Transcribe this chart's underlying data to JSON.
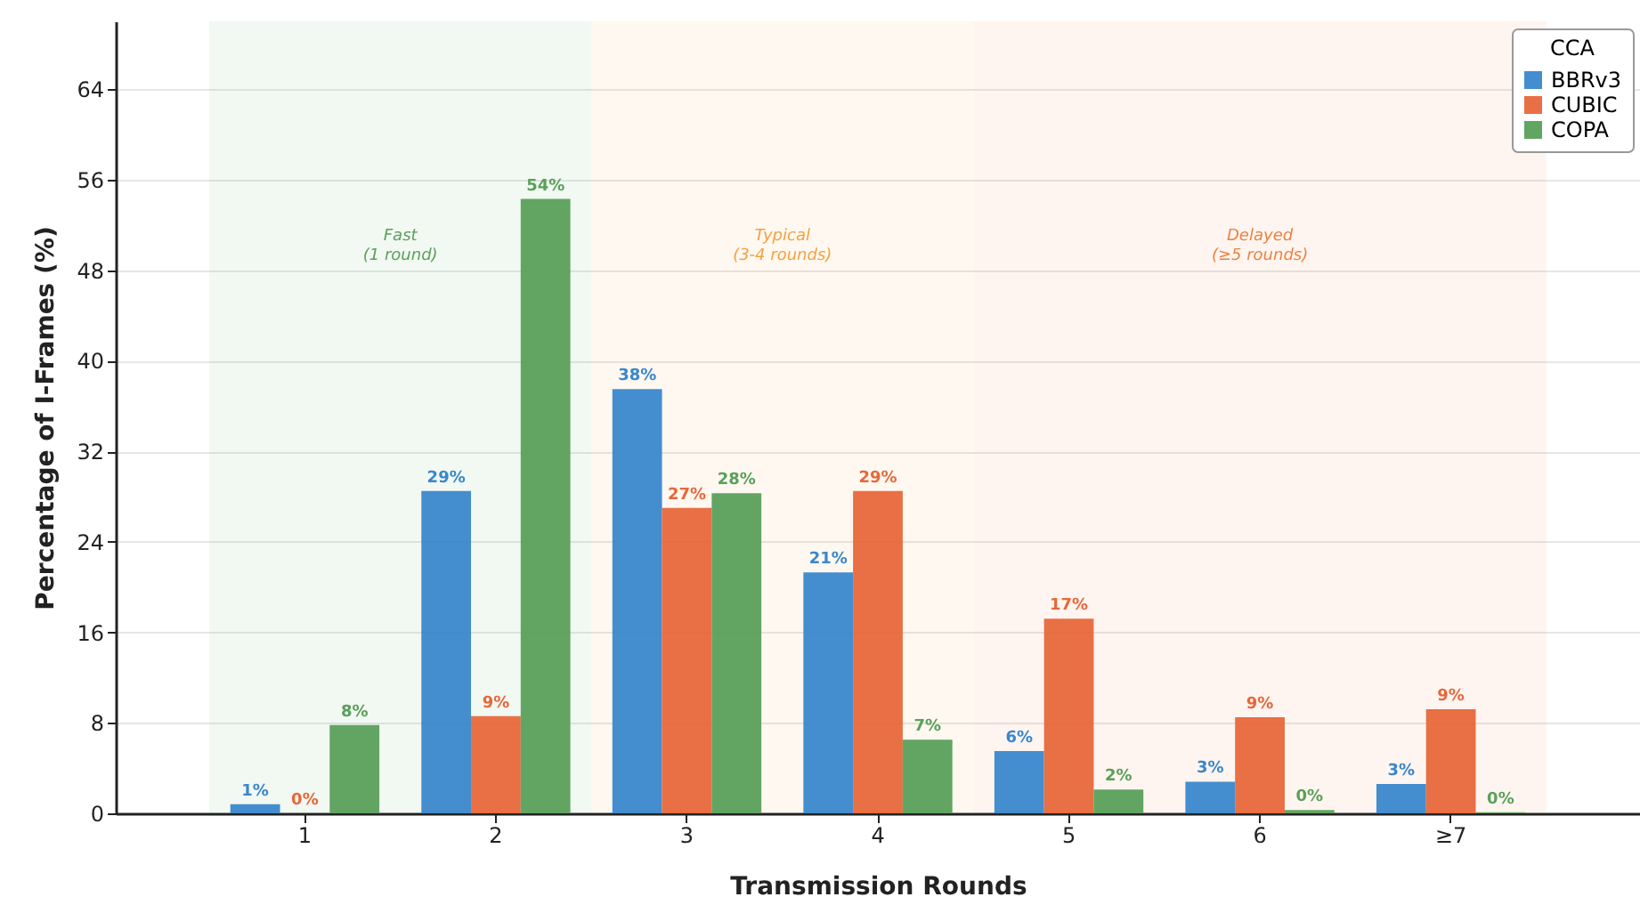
{
  "chart_data": {
    "type": "bar",
    "xlabel": "Transmission Rounds",
    "ylabel": "Percentage of I-Frames (%)",
    "legend_title": "CCA",
    "categories": [
      "1",
      "2",
      "3",
      "4",
      "5",
      "6",
      "≥7"
    ],
    "series": [
      {
        "name": "BBRv3",
        "color": "#3a87cc",
        "values": [
          0.8,
          28.5,
          37.5,
          21.3,
          5.5,
          2.8,
          2.6
        ],
        "value_labels": [
          "1%",
          "29%",
          "38%",
          "21%",
          "6%",
          "3%",
          "3%"
        ]
      },
      {
        "name": "CUBIC",
        "color": "#e8673a",
        "values": [
          0,
          8.6,
          27.0,
          28.5,
          17.2,
          8.5,
          9.2
        ],
        "value_labels": [
          "0%",
          "9%",
          "27%",
          "29%",
          "17%",
          "9%",
          "9%"
        ]
      },
      {
        "name": "COPA",
        "color": "#5aa05a",
        "values": [
          7.8,
          54.3,
          28.3,
          6.5,
          2.1,
          0.3,
          0.1
        ],
        "value_labels": [
          "8%",
          "54%",
          "28%",
          "7%",
          "2%",
          "0%",
          "0%"
        ]
      }
    ],
    "bands": [
      {
        "axis": "x",
        "from": "1",
        "to": "2",
        "label": "Fast\n(1 round)",
        "color": "#5aa05a"
      },
      {
        "axis": "x",
        "from": "3",
        "to": "4",
        "label": "Typical\n(3-4 rounds)",
        "color": "#f5a040"
      },
      {
        "axis": "x",
        "from": "5",
        "to": "≥7",
        "label": "Delayed\n(≥5 rounds)",
        "color": "#f07f40"
      }
    ],
    "ylim": [
      0,
      70
    ],
    "yticks": [
      0,
      8,
      16,
      24,
      32,
      40,
      48,
      56,
      64
    ],
    "grid": "y",
    "legend": "top right"
  }
}
